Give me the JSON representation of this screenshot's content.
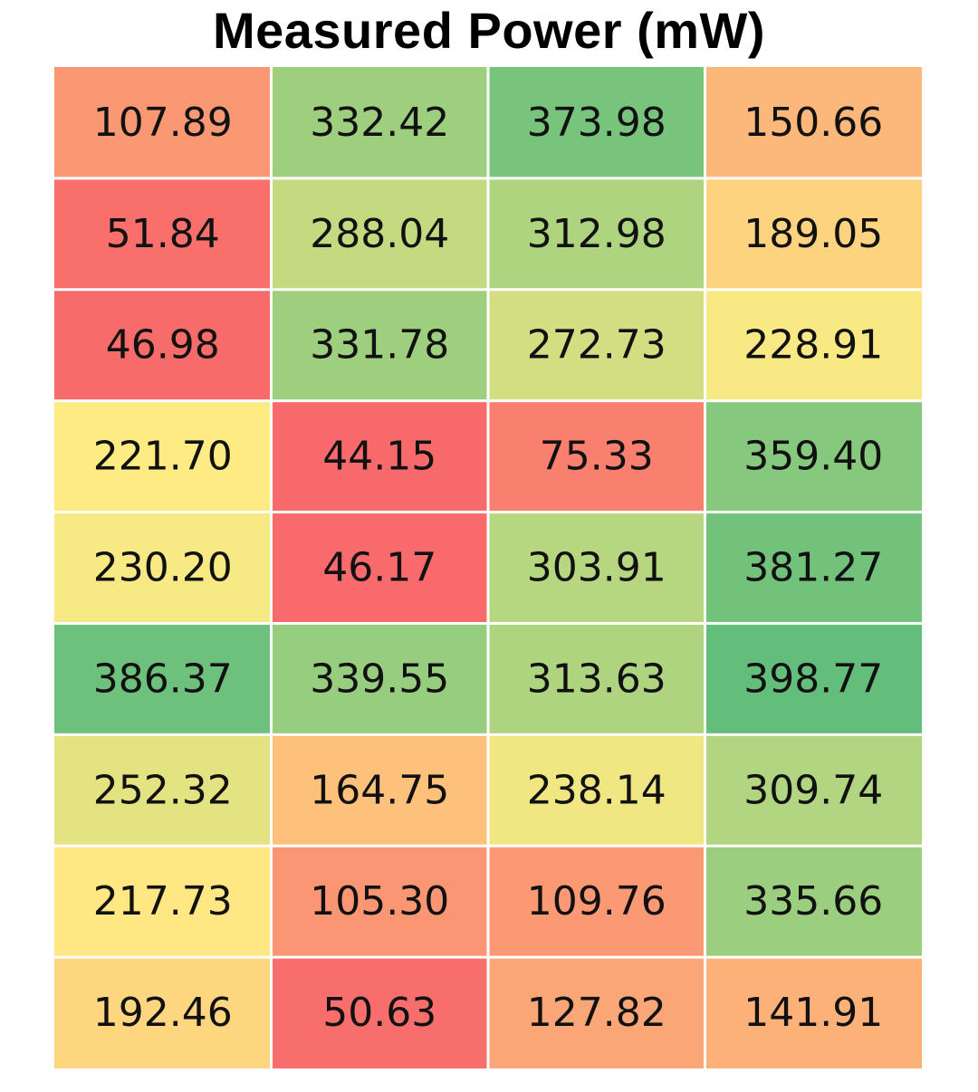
{
  "chart_data": {
    "type": "heatmap",
    "title": "Measured Power (mW)",
    "rows": 9,
    "columns": 4,
    "values": [
      [
        "107.89",
        "332.42",
        "373.98",
        "150.66"
      ],
      [
        "51.84",
        "288.04",
        "312.98",
        "189.05"
      ],
      [
        "46.98",
        "331.78",
        "272.73",
        "228.91"
      ],
      [
        "221.70",
        "44.15",
        "75.33",
        "359.40"
      ],
      [
        "230.20",
        "46.17",
        "303.91",
        "381.27"
      ],
      [
        "386.37",
        "339.55",
        "313.63",
        "398.77"
      ],
      [
        "252.32",
        "164.75",
        "238.14",
        "309.74"
      ],
      [
        "217.73",
        "105.30",
        "109.76",
        "335.66"
      ],
      [
        "192.46",
        "50.63",
        "127.82",
        "141.91"
      ]
    ],
    "color_scale": {
      "low": "#f8696b",
      "mid": "#ffeb84",
      "high": "#63be7b"
    },
    "grid": true,
    "legend": "none"
  }
}
